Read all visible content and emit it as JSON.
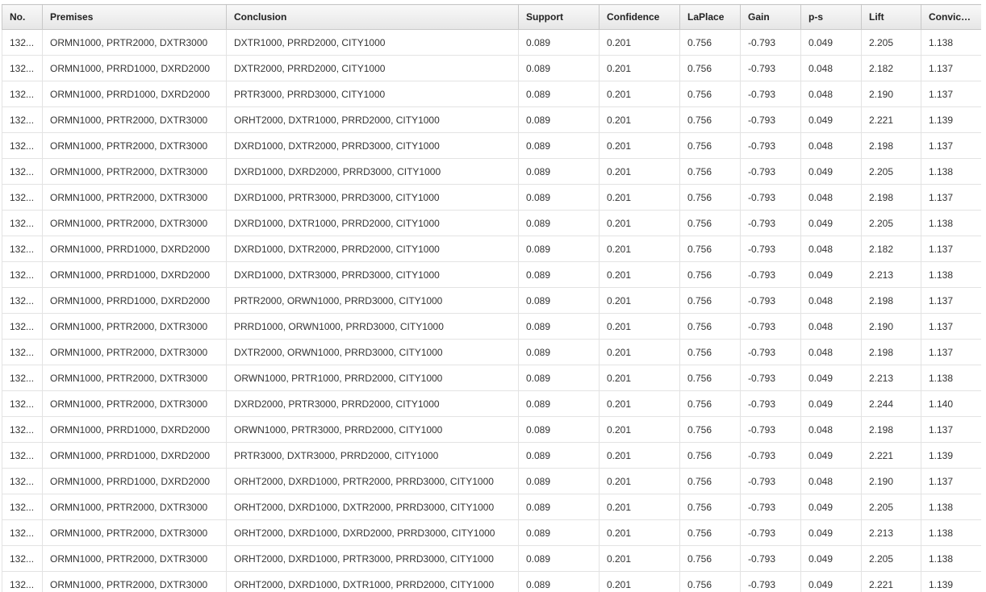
{
  "table": {
    "columns": [
      "No.",
      "Premises",
      "Conclusion",
      "Support",
      "Confidence",
      "LaPlace",
      "Gain",
      "p-s",
      "Lift",
      "Convicti..."
    ],
    "rows": [
      [
        "132...",
        "ORMN1000, PRTR2000, DXTR3000",
        "DXTR1000, PRRD2000, CITY1000",
        "0.089",
        "0.201",
        "0.756",
        "-0.793",
        "0.049",
        "2.205",
        "1.138"
      ],
      [
        "132...",
        "ORMN1000, PRRD1000, DXRD2000",
        "DXTR2000, PRRD2000, CITY1000",
        "0.089",
        "0.201",
        "0.756",
        "-0.793",
        "0.048",
        "2.182",
        "1.137"
      ],
      [
        "132...",
        "ORMN1000, PRRD1000, DXRD2000",
        "PRTR3000, PRRD3000, CITY1000",
        "0.089",
        "0.201",
        "0.756",
        "-0.793",
        "0.048",
        "2.190",
        "1.137"
      ],
      [
        "132...",
        "ORMN1000, PRTR2000, DXTR3000",
        "ORHT2000, DXTR1000, PRRD2000, CITY1000",
        "0.089",
        "0.201",
        "0.756",
        "-0.793",
        "0.049",
        "2.221",
        "1.139"
      ],
      [
        "132...",
        "ORMN1000, PRTR2000, DXTR3000",
        "DXRD1000, DXTR2000, PRRD3000, CITY1000",
        "0.089",
        "0.201",
        "0.756",
        "-0.793",
        "0.048",
        "2.198",
        "1.137"
      ],
      [
        "132...",
        "ORMN1000, PRTR2000, DXTR3000",
        "DXRD1000, DXRD2000, PRRD3000, CITY1000",
        "0.089",
        "0.201",
        "0.756",
        "-0.793",
        "0.049",
        "2.205",
        "1.138"
      ],
      [
        "132...",
        "ORMN1000, PRTR2000, DXTR3000",
        "DXRD1000, PRTR3000, PRRD3000, CITY1000",
        "0.089",
        "0.201",
        "0.756",
        "-0.793",
        "0.048",
        "2.198",
        "1.137"
      ],
      [
        "132...",
        "ORMN1000, PRTR2000, DXTR3000",
        "DXRD1000, DXTR1000, PRRD2000, CITY1000",
        "0.089",
        "0.201",
        "0.756",
        "-0.793",
        "0.049",
        "2.205",
        "1.138"
      ],
      [
        "132...",
        "ORMN1000, PRRD1000, DXRD2000",
        "DXRD1000, DXTR2000, PRRD2000, CITY1000",
        "0.089",
        "0.201",
        "0.756",
        "-0.793",
        "0.048",
        "2.182",
        "1.137"
      ],
      [
        "132...",
        "ORMN1000, PRRD1000, DXRD2000",
        "DXRD1000, DXTR3000, PRRD3000, CITY1000",
        "0.089",
        "0.201",
        "0.756",
        "-0.793",
        "0.049",
        "2.213",
        "1.138"
      ],
      [
        "132...",
        "ORMN1000, PRRD1000, DXRD2000",
        "PRTR2000, ORWN1000, PRRD3000, CITY1000",
        "0.089",
        "0.201",
        "0.756",
        "-0.793",
        "0.048",
        "2.198",
        "1.137"
      ],
      [
        "132...",
        "ORMN1000, PRTR2000, DXTR3000",
        "PRRD1000, ORWN1000, PRRD3000, CITY1000",
        "0.089",
        "0.201",
        "0.756",
        "-0.793",
        "0.048",
        "2.190",
        "1.137"
      ],
      [
        "132...",
        "ORMN1000, PRTR2000, DXTR3000",
        "DXTR2000, ORWN1000, PRRD3000, CITY1000",
        "0.089",
        "0.201",
        "0.756",
        "-0.793",
        "0.048",
        "2.198",
        "1.137"
      ],
      [
        "132...",
        "ORMN1000, PRTR2000, DXTR3000",
        "ORWN1000, PRTR1000, PRRD2000, CITY1000",
        "0.089",
        "0.201",
        "0.756",
        "-0.793",
        "0.049",
        "2.213",
        "1.138"
      ],
      [
        "132...",
        "ORMN1000, PRTR2000, DXTR3000",
        "DXRD2000, PRTR3000, PRRD2000, CITY1000",
        "0.089",
        "0.201",
        "0.756",
        "-0.793",
        "0.049",
        "2.244",
        "1.140"
      ],
      [
        "132...",
        "ORMN1000, PRRD1000, DXRD2000",
        "ORWN1000, PRTR3000, PRRD2000, CITY1000",
        "0.089",
        "0.201",
        "0.756",
        "-0.793",
        "0.048",
        "2.198",
        "1.137"
      ],
      [
        "132...",
        "ORMN1000, PRRD1000, DXRD2000",
        "PRTR3000, DXTR3000, PRRD2000, CITY1000",
        "0.089",
        "0.201",
        "0.756",
        "-0.793",
        "0.049",
        "2.221",
        "1.139"
      ],
      [
        "132...",
        "ORMN1000, PRRD1000, DXRD2000",
        "ORHT2000, DXRD1000, PRTR2000, PRRD3000, CITY1000",
        "0.089",
        "0.201",
        "0.756",
        "-0.793",
        "0.048",
        "2.190",
        "1.137"
      ],
      [
        "132...",
        "ORMN1000, PRTR2000, DXTR3000",
        "ORHT2000, DXRD1000, DXTR2000, PRRD3000, CITY1000",
        "0.089",
        "0.201",
        "0.756",
        "-0.793",
        "0.049",
        "2.205",
        "1.138"
      ],
      [
        "132...",
        "ORMN1000, PRTR2000, DXTR3000",
        "ORHT2000, DXRD1000, DXRD2000, PRRD3000, CITY1000",
        "0.089",
        "0.201",
        "0.756",
        "-0.793",
        "0.049",
        "2.213",
        "1.138"
      ],
      [
        "132...",
        "ORMN1000, PRTR2000, DXTR3000",
        "ORHT2000, DXRD1000, PRTR3000, PRRD3000, CITY1000",
        "0.089",
        "0.201",
        "0.756",
        "-0.793",
        "0.049",
        "2.205",
        "1.138"
      ],
      [
        "132...",
        "ORMN1000, PRTR2000, DXTR3000",
        "ORHT2000, DXRD1000, DXTR1000, PRRD2000, CITY1000",
        "0.089",
        "0.201",
        "0.756",
        "-0.793",
        "0.049",
        "2.221",
        "1.139"
      ]
    ]
  }
}
